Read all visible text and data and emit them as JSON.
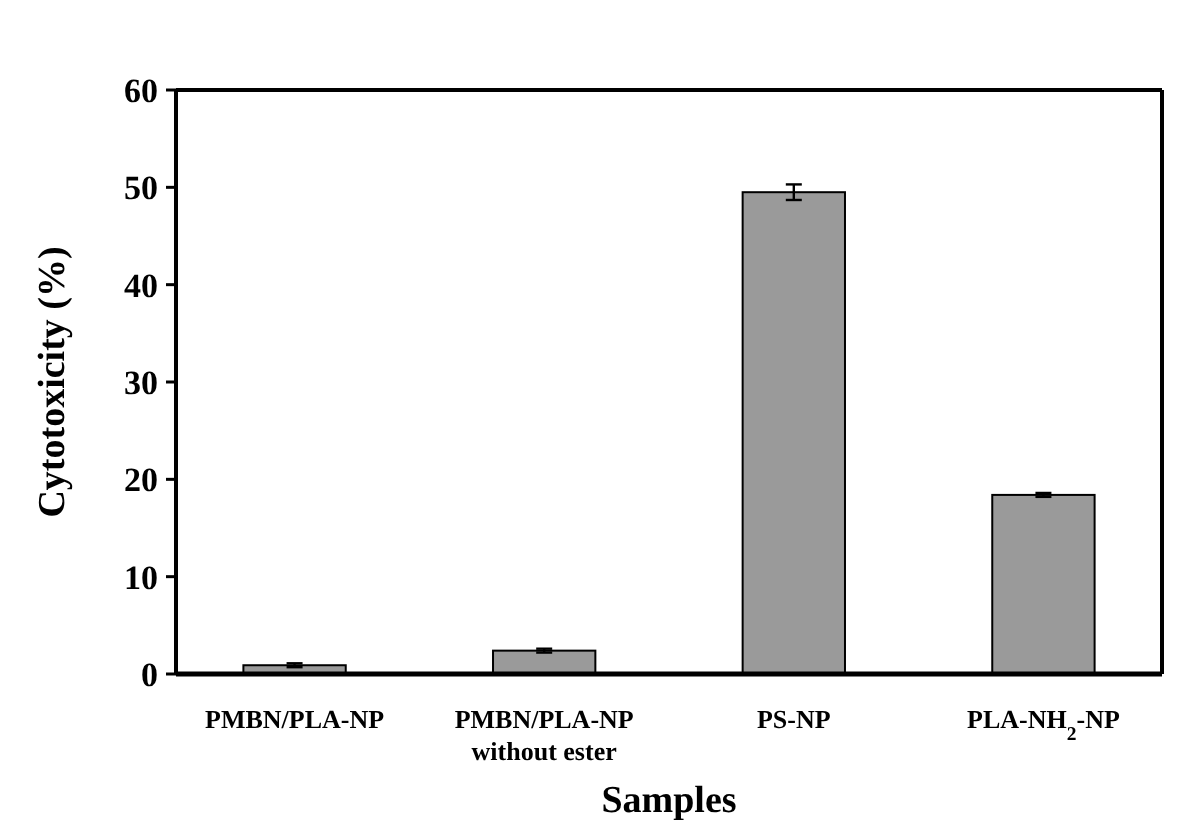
{
  "chart_data": {
    "type": "bar",
    "xlabel": "Samples",
    "ylabel": "Cytotoxicity (%)",
    "categories": [
      "PMBN/PLA-NP",
      "PMBN/PLA-NP\nwithout ester",
      "PS-NP",
      "PLA-NH$_{2}$-NP"
    ],
    "values": [
      0.9,
      2.4,
      49.5,
      18.4
    ],
    "errors": [
      0.2,
      0.2,
      0.8,
      0.2
    ],
    "color": "#9a9a9a",
    "ylim": [
      0,
      60
    ],
    "yticks": [
      0,
      10,
      20,
      30,
      40,
      50,
      60
    ],
    "grid": false
  }
}
